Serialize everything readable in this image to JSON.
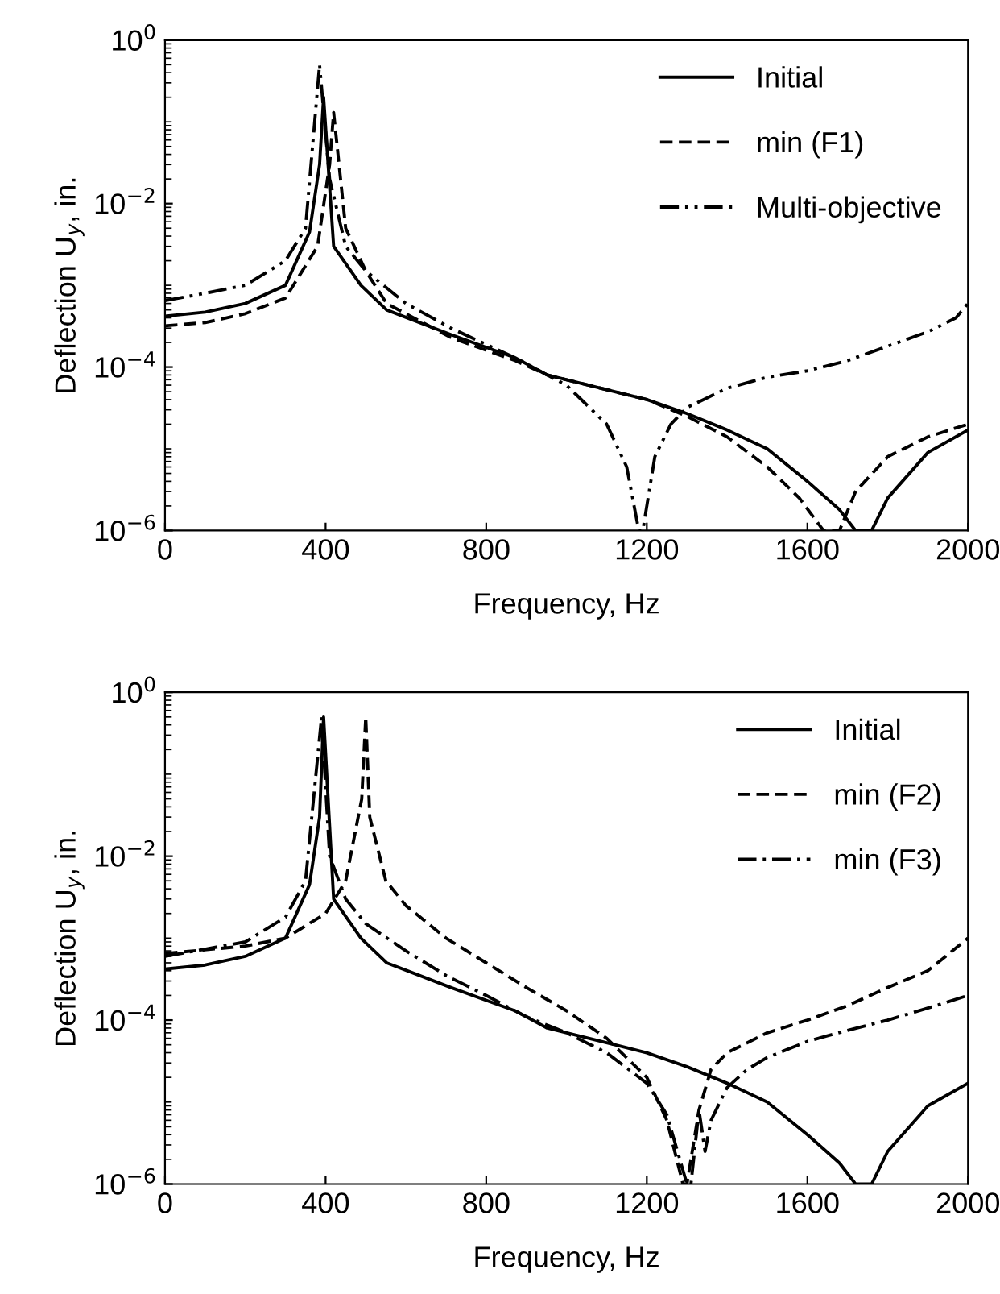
{
  "chart_data": [
    {
      "type": "line",
      "xlabel": "Frequency, Hz",
      "ylabel": "Deflection U$_{y}$, in.",
      "log": "y",
      "legend": "top right",
      "grid": false,
      "xlim": [
        0,
        2000
      ],
      "xticks": [
        0,
        400,
        800,
        1200,
        1600,
        2000
      ],
      "ylim": [
        1e-06,
        1
      ],
      "yticks": [
        {
          "value": 1,
          "label": "10$^{0}$"
        },
        {
          "value": 0.01,
          "label": "10$^{−2}$"
        },
        {
          "value": 0.0001,
          "label": "10$^{−4}$"
        },
        {
          "value": 1e-06,
          "label": "10$^{−6}$"
        }
      ],
      "series": [
        {
          "name": "Initial",
          "color": "#000000",
          "line_style": "solid",
          "x": [
            0,
            100,
            200,
            300,
            360,
            385,
            395,
            420,
            488,
            552,
            712,
            872,
            952,
            1200,
            1300,
            1400,
            1500,
            1600,
            1680,
            1720,
            1760,
            1800,
            1900,
            2000
          ],
          "values": [
            0.00042,
            0.00047,
            0.0006,
            0.001,
            0.0045,
            0.03,
            0.2,
            0.003,
            0.001,
            0.0005,
            0.00025,
            0.00013,
            8e-05,
            4e-05,
            2.7e-05,
            1.7e-05,
            1e-05,
            4e-06,
            1.8e-06,
            1e-06,
            1e-06,
            2.5e-06,
            9e-06,
            1.7e-05
          ]
        },
        {
          "name": "min (F1)",
          "color": "#000000",
          "line_style": "dashed",
          "x": [
            0,
            100,
            200,
            300,
            380,
            410,
            420,
            450,
            500,
            552,
            712,
            872,
            952,
            1200,
            1300,
            1400,
            1500,
            1580,
            1640,
            1680,
            1720,
            1800,
            1900,
            2000
          ],
          "values": [
            0.00032,
            0.00035,
            0.00045,
            0.0007,
            0.003,
            0.03,
            0.13,
            0.005,
            0.0015,
            0.0006,
            0.00023,
            0.00012,
            8e-05,
            4e-05,
            2.5e-05,
            1.4e-05,
            6e-06,
            2.5e-06,
            1e-06,
            1e-06,
            3e-06,
            8e-06,
            1.4e-05,
            2e-05
          ]
        },
        {
          "name": "Multi-objective",
          "color": "#000000",
          "line_style": "dashdotdot",
          "x": [
            0,
            100,
            200,
            300,
            350,
            385,
            410,
            450,
            500,
            600,
            712,
            872,
            952,
            1000,
            1100,
            1150,
            1180,
            1190,
            1220,
            1260,
            1300,
            1400,
            1500,
            1600,
            1700,
            1800,
            1900,
            1970,
            2000
          ],
          "values": [
            0.00065,
            0.0008,
            0.001,
            0.002,
            0.005,
            0.5,
            0.02,
            0.003,
            0.0015,
            0.0006,
            0.0003,
            0.00013,
            8e-05,
            6e-05,
            2e-05,
            6e-06,
            1e-06,
            1e-06,
            8e-06,
            2e-05,
            3.2e-05,
            5.5e-05,
            7.5e-05,
            9e-05,
            0.00012,
            0.00018,
            0.00027,
            0.0004,
            0.0006
          ]
        }
      ]
    },
    {
      "type": "line",
      "xlabel": "Frequency, Hz",
      "ylabel": "Deflection U$_{y}$, in.",
      "log": "y",
      "legend": "top right",
      "grid": false,
      "xlim": [
        0,
        2000
      ],
      "xticks": [
        0,
        400,
        800,
        1200,
        1600,
        2000
      ],
      "ylim": [
        1e-06,
        1
      ],
      "yticks": [
        {
          "value": 1,
          "label": "10$^{0}$"
        },
        {
          "value": 0.01,
          "label": "10$^{−2}$"
        },
        {
          "value": 0.0001,
          "label": "10$^{−4}$"
        },
        {
          "value": 1e-06,
          "label": "10$^{−6}$"
        }
      ],
      "series": [
        {
          "name": "Initial",
          "color": "#000000",
          "line_style": "solid",
          "x": [
            0,
            100,
            200,
            300,
            360,
            385,
            395,
            420,
            488,
            552,
            712,
            872,
            952,
            1200,
            1300,
            1400,
            1500,
            1600,
            1680,
            1720,
            1760,
            1800,
            1900,
            2000
          ],
          "values": [
            0.00042,
            0.00047,
            0.0006,
            0.001,
            0.0045,
            0.03,
            0.5,
            0.003,
            0.001,
            0.0005,
            0.00025,
            0.00013,
            8e-05,
            4e-05,
            2.7e-05,
            1.7e-05,
            1e-05,
            4e-06,
            1.8e-06,
            1e-06,
            1e-06,
            2.5e-06,
            9e-06,
            1.7e-05
          ]
        },
        {
          "name": "min (F2)",
          "color": "#000000",
          "line_style": "dashed",
          "x": [
            0,
            200,
            300,
            400,
            450,
            490,
            500,
            510,
            550,
            600,
            700,
            800,
            900,
            1000,
            1100,
            1200,
            1250,
            1290,
            1300,
            1330,
            1360,
            1400,
            1500,
            1600,
            1700,
            1800,
            1900,
            2000
          ],
          "values": [
            0.00065,
            0.0008,
            0.001,
            0.002,
            0.005,
            0.05,
            0.5,
            0.03,
            0.005,
            0.0025,
            0.001,
            0.0005,
            0.00025,
            0.00013,
            6e-05,
            2e-05,
            6e-06,
            1e-06,
            1e-06,
            8e-06,
            2.5e-05,
            4e-05,
            7e-05,
            0.0001,
            0.00015,
            0.00025,
            0.0004,
            0.001
          ]
        },
        {
          "name": "min (F3)",
          "color": "#000000",
          "line_style": "dashdot",
          "x": [
            0,
            200,
            300,
            350,
            390,
            410,
            450,
            500,
            600,
            700,
            800,
            900,
            1000,
            1100,
            1200,
            1250,
            1300,
            1310,
            1330,
            1345,
            1360,
            1400,
            1450,
            1500,
            1600,
            1700,
            1800,
            1900,
            2000
          ],
          "values": [
            0.0006,
            0.0009,
            0.0018,
            0.005,
            0.5,
            0.01,
            0.003,
            0.0015,
            0.0007,
            0.00035,
            0.0002,
            0.00011,
            7e-05,
            4e-05,
            1.7e-05,
            7e-06,
            1e-06,
            1e-06,
            8e-06,
            2.5e-06,
            6e-06,
            1.5e-05,
            2.5e-05,
            3.5e-05,
            5.5e-05,
            7.5e-05,
            0.0001,
            0.00014,
            0.0002
          ]
        }
      ]
    }
  ]
}
